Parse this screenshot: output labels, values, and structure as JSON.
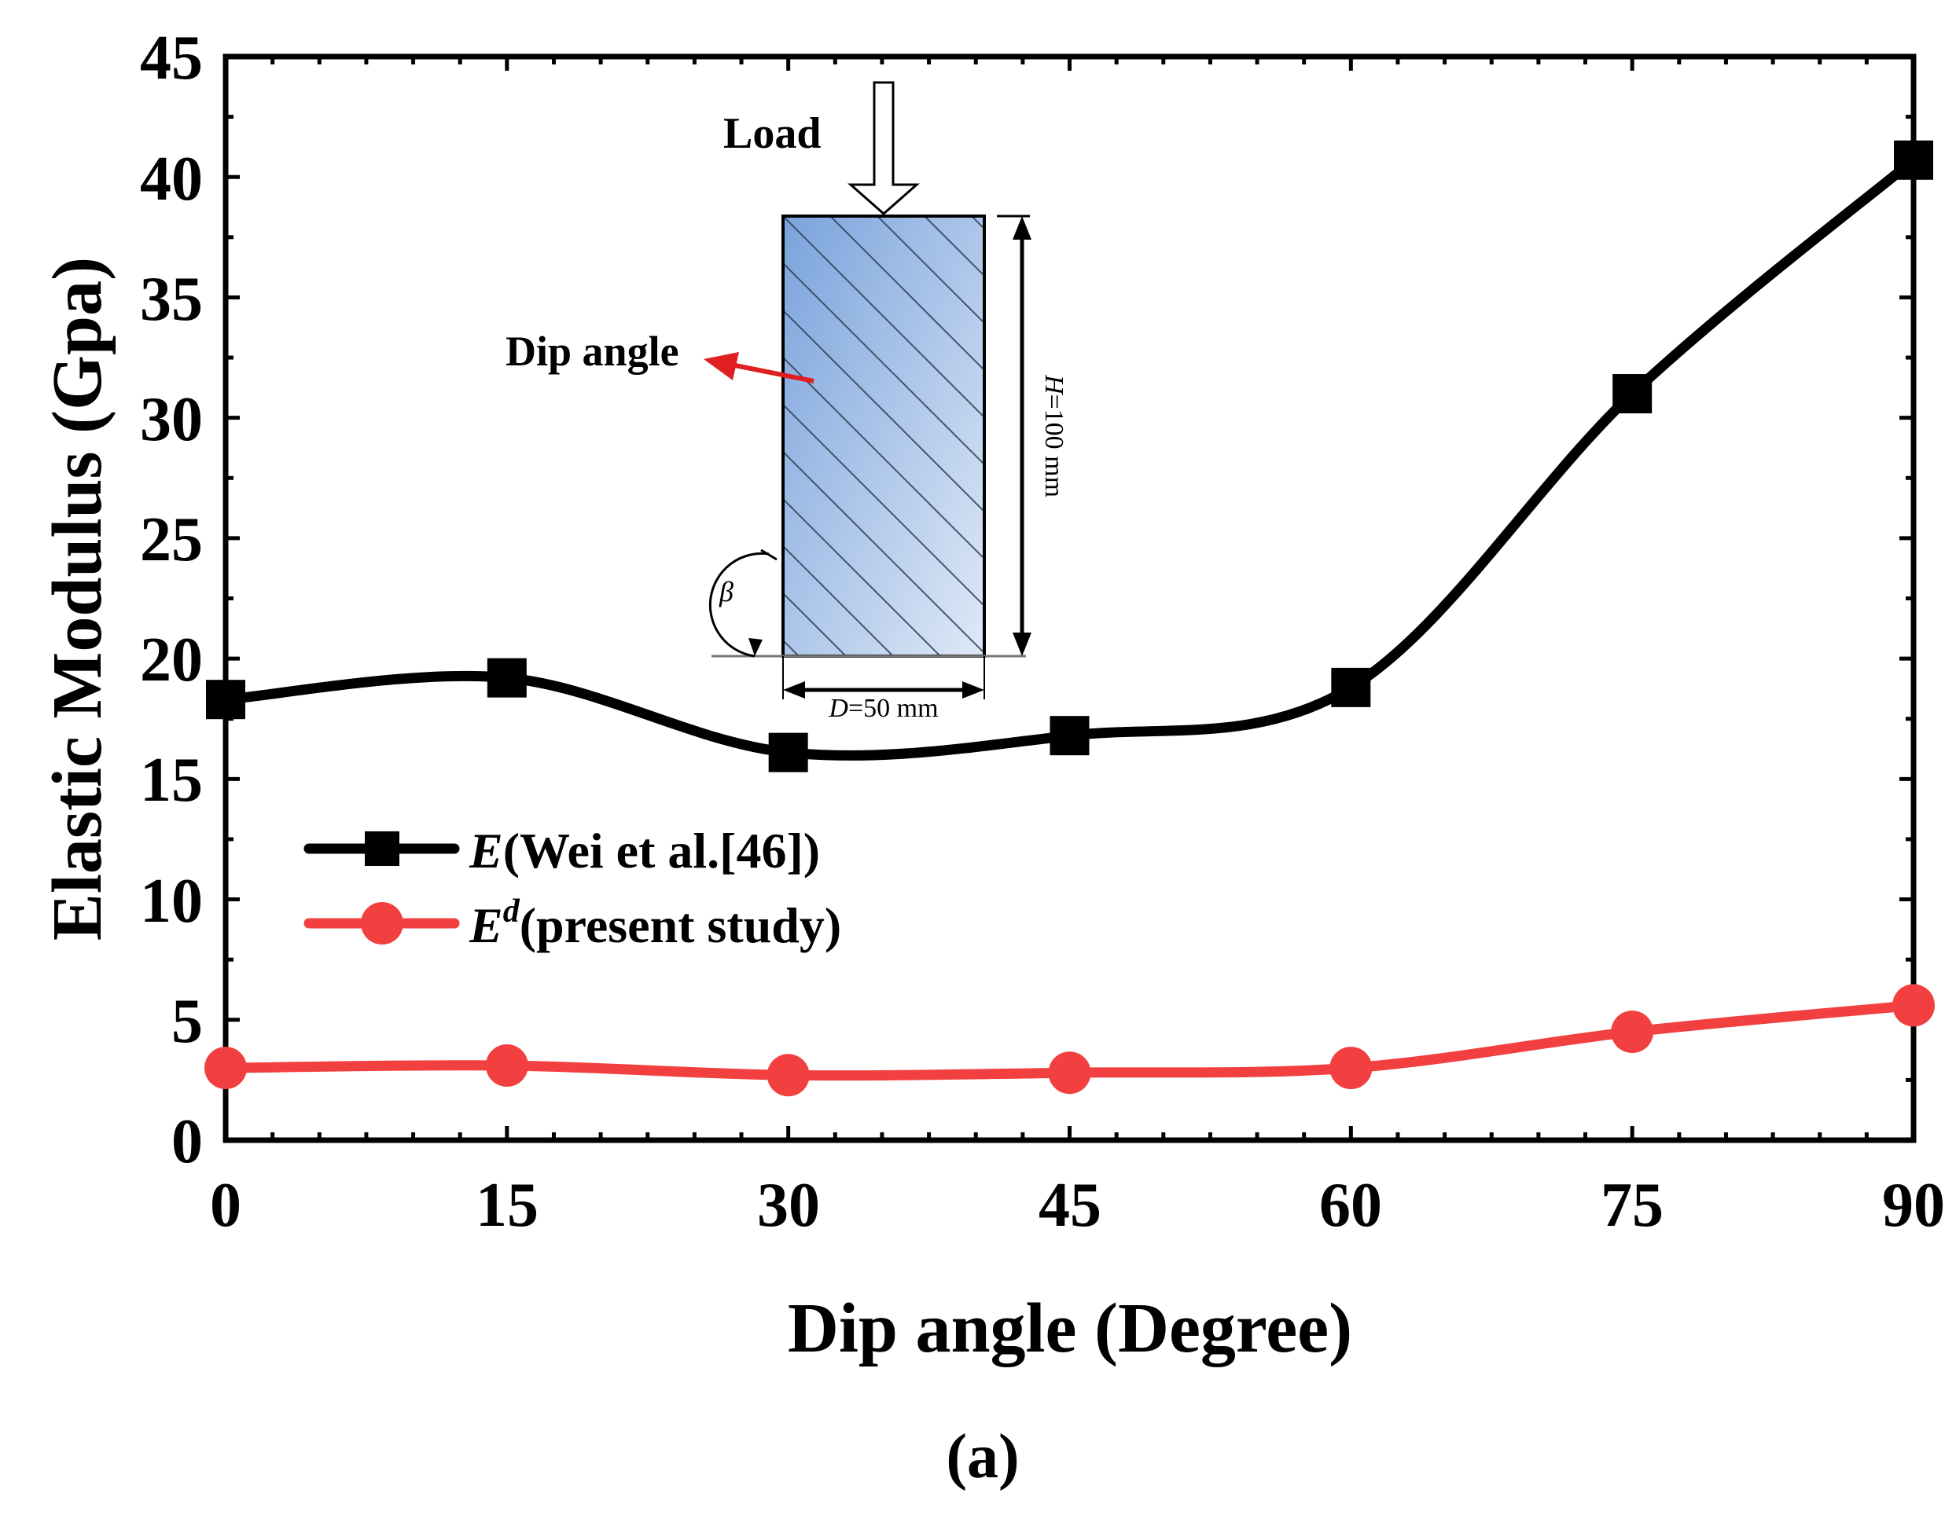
{
  "chart_data": {
    "type": "line",
    "title": "",
    "xlabel": "Dip angle (Degree)",
    "ylabel": "Elastic Modulus (Gpa)",
    "panel_label": "(a)",
    "x": [
      0,
      15,
      30,
      45,
      60,
      75,
      90
    ],
    "xlim": [
      0,
      90
    ],
    "ylim": [
      0,
      45
    ],
    "xticks": [
      0,
      15,
      30,
      45,
      60,
      75,
      90
    ],
    "yticks": [
      0,
      5,
      10,
      15,
      20,
      25,
      30,
      35,
      40,
      45
    ],
    "grid": false,
    "legend_position": "lower-left",
    "series": [
      {
        "name": "E(Wei et al.[46])",
        "legend_main": "E",
        "legend_rest": "(Wei et al.[46])",
        "marker": "square",
        "color": "#000000",
        "values": [
          18.3,
          19.2,
          16.1,
          16.8,
          18.8,
          31.0,
          40.7
        ]
      },
      {
        "name": "Ed(present study)",
        "legend_main": "E",
        "legend_sup": "d",
        "legend_rest": "(present study)",
        "marker": "circle",
        "color": "#f24040",
        "values": [
          3.0,
          3.1,
          2.7,
          2.8,
          3.0,
          4.5,
          5.6
        ]
      }
    ],
    "inset": {
      "load_label": "Load",
      "dip_angle_label": "Dip angle",
      "height_label_var": "H",
      "height_label_val": "=100 mm",
      "diameter_label_var": "D",
      "diameter_label_val": "=50 mm",
      "angle_symbol": "β",
      "arrow_color": "#e02020",
      "specimen_color_top": "#7aa3dc",
      "specimen_color_bottom": "#dfe9f7"
    }
  }
}
